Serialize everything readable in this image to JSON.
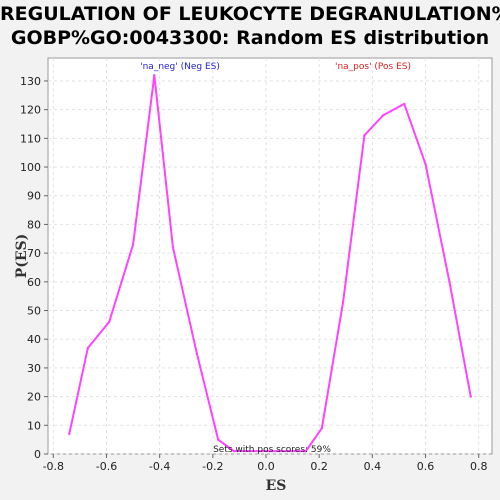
{
  "chart_data": {
    "type": "line",
    "title_line1": "REGULATION OF LEUKOCYTE DEGRANULATION%",
    "title_line2": "GOBP%GO:0043300: Random ES distribution",
    "xlabel": "ES",
    "ylabel": "P(ES)",
    "xlim": [
      -0.82,
      0.85
    ],
    "ylim": [
      0,
      138
    ],
    "xticks": [
      -0.8,
      -0.6,
      -0.4,
      -0.2,
      0.0,
      0.2,
      0.4,
      0.6,
      0.8
    ],
    "xtick_labels": [
      "-0.8",
      "-0.6",
      "-0.4",
      "-0.2",
      "0.0",
      "0.2",
      "0.4",
      "0.6",
      "0.8"
    ],
    "yticks": [
      0,
      10,
      20,
      30,
      40,
      50,
      60,
      70,
      80,
      90,
      100,
      110,
      120,
      130
    ],
    "ytick_labels": [
      "0",
      "10",
      "20",
      "30",
      "40",
      "50",
      "60",
      "70",
      "80",
      "90",
      "100",
      "110",
      "120",
      "130"
    ],
    "grid": true,
    "legend_neg": "'na_neg' (Neg ES)",
    "legend_pos": "'na_pos' (Pos ES)",
    "annotation": "Sets with pos scores: 59%",
    "line_color": "#ff44ff",
    "series": [
      {
        "x": [
          -0.74,
          -0.67,
          -0.59,
          -0.5,
          -0.42,
          -0.35,
          -0.26,
          -0.18,
          -0.12,
          0.15,
          0.21,
          0.29,
          0.37,
          0.44,
          0.52,
          0.6,
          0.69,
          0.77
        ],
        "y": [
          7,
          37,
          46,
          73,
          132,
          72,
          35,
          5,
          1,
          1,
          9,
          53,
          111,
          118,
          122,
          101,
          60,
          20
        ]
      }
    ]
  }
}
